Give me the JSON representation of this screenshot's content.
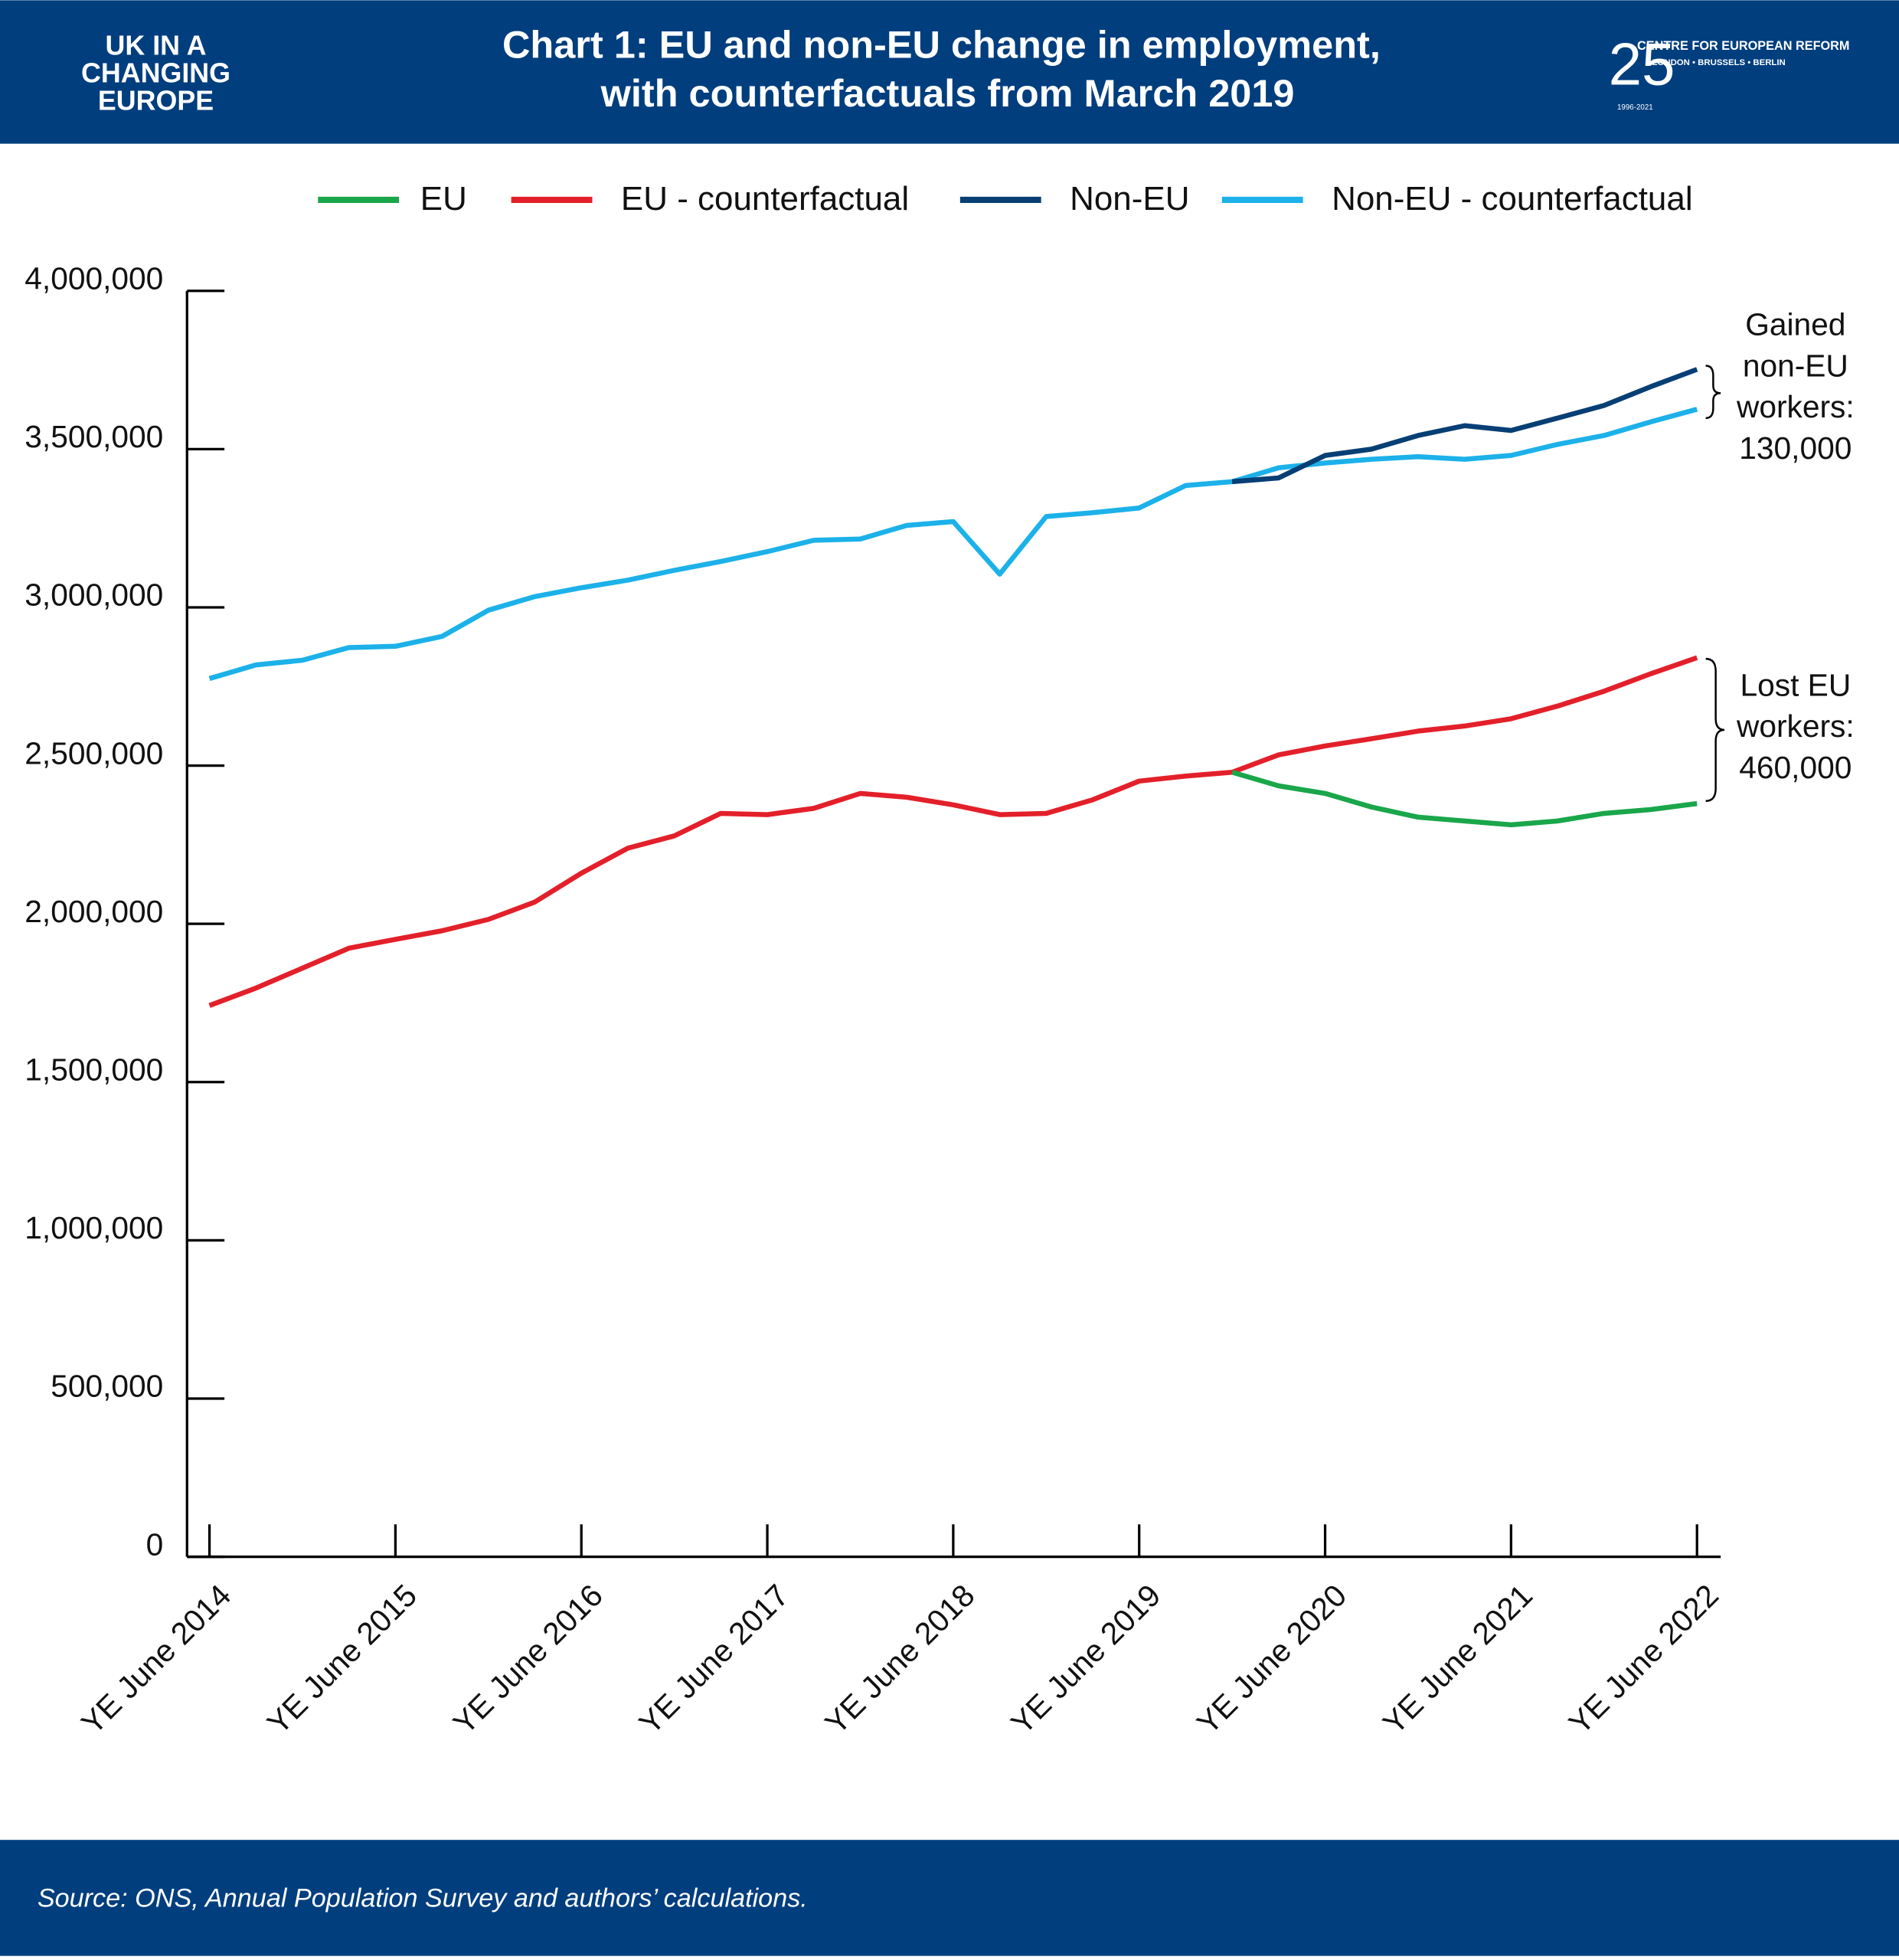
{
  "header": {
    "left_logo": [
      "UK IN A",
      "CHANGING",
      "EUROPE"
    ],
    "right_logo": {
      "number": "25",
      "name": "CENTRE FOR EUROPEAN REFORM",
      "cities": "LONDON • BRUSSELS • BERLIN",
      "years": "1996-2021"
    }
  },
  "chart_data": {
    "type": "line",
    "title": [
      "Chart 1: EU and non-EU change in employment,",
      "with counterfactuals from March 2019"
    ],
    "categories": [
      "YE June 2014",
      null,
      null,
      null,
      "YE June 2015",
      null,
      null,
      null,
      "YE June 2016",
      null,
      null,
      null,
      "YE June 2017",
      null,
      null,
      null,
      "YE June 2018",
      null,
      null,
      null,
      "YE June 2019",
      null,
      null,
      null,
      "YE June 2020",
      null,
      null,
      null,
      "YE June 2021",
      null,
      null,
      null,
      "YE June 2022"
    ],
    "series": [
      {
        "name": "EU",
        "color": "#1aa64a",
        "values": [
          null,
          null,
          null,
          null,
          null,
          null,
          null,
          null,
          null,
          null,
          null,
          null,
          null,
          null,
          null,
          null,
          null,
          null,
          null,
          null,
          null,
          null,
          2479000,
          2436000,
          2412000,
          2369000,
          2337000,
          2325000,
          2313000,
          2325000,
          2349000,
          2361000,
          2380000
        ]
      },
      {
        "name": "EU - counterfactual",
        "color": "#e3202a",
        "values": [
          1742000,
          1797000,
          1860000,
          1923000,
          1951000,
          1978000,
          2014000,
          2069000,
          2160000,
          2239000,
          2278000,
          2349000,
          2345000,
          2365000,
          2412000,
          2400000,
          2376000,
          2345000,
          2349000,
          2392000,
          2451000,
          2467000,
          2479000,
          2534000,
          2562000,
          2585000,
          2609000,
          2625000,
          2648000,
          2688000,
          2735000,
          2790000,
          2841000
        ]
      },
      {
        "name": "Non-EU",
        "color": "#063f74",
        "values": [
          null,
          null,
          null,
          null,
          null,
          null,
          null,
          null,
          null,
          null,
          null,
          null,
          null,
          null,
          null,
          null,
          null,
          null,
          null,
          null,
          null,
          null,
          3397000,
          3409000,
          3480000,
          3500000,
          3543000,
          3574000,
          3559000,
          3598000,
          3638000,
          3697000,
          3752000
        ]
      },
      {
        "name": "Non-EU - counterfactual",
        "color": "#1cb1e9",
        "values": [
          2775000,
          2818000,
          2833000,
          2873000,
          2877000,
          2908000,
          2991000,
          3034000,
          3062000,
          3086000,
          3117000,
          3145000,
          3176000,
          3212000,
          3216000,
          3259000,
          3271000,
          3105000,
          3287000,
          3299000,
          3314000,
          3385000,
          3397000,
          3441000,
          3456000,
          3468000,
          3476000,
          3468000,
          3480000,
          3515000,
          3543000,
          3586000,
          3626000
        ]
      }
    ],
    "ylim": [
      0,
      4000000
    ],
    "yticks": [
      0,
      {
        "value": 500000,
        "label": "500,000"
      },
      {
        "value": 1000000,
        "label": "1,000,000"
      },
      {
        "value": 1500000,
        "label": "1,500,000"
      },
      {
        "value": 2000000,
        "label": "2,000,000"
      },
      {
        "value": 2500000,
        "label": "2,500,000"
      },
      {
        "value": 3000000,
        "label": "3,000,000"
      },
      {
        "value": 3500000,
        "label": "3,500,000"
      },
      {
        "value": 4000000,
        "label": "4,000,000"
      }
    ],
    "legend": "top",
    "annotations": [
      [
        "Gained",
        "non-EU",
        "workers:",
        "130,000"
      ],
      [
        "Lost EU",
        "workers:",
        "460,000"
      ]
    ],
    "source": "Source: ONS, Annual Population Survey and authors’ calculations."
  }
}
